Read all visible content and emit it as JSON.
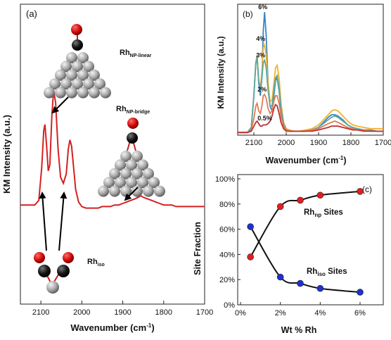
{
  "panels": {
    "a": {
      "label": "(a)",
      "ylabel": "KM Intensity (a.u.)",
      "xlabel": "Wavenumber (cm",
      "xlabel_sup": "-1",
      "xlabel_tail": ")",
      "x_ticks": [
        2100,
        2000,
        1900,
        1800,
        1700
      ],
      "annotations": {
        "linear_main": "Rh",
        "linear_sub": "NP-linear",
        "bridge_main": "Rh",
        "bridge_sub": "NP-bridge",
        "iso_main": "Rh",
        "iso_sub": "iso"
      }
    },
    "b": {
      "label": "(b)",
      "ylabel": "KM Intensity (a.u.)",
      "xlabel": "Wavenumber (cm",
      "xlabel_sup": "-1",
      "xlabel_tail": ")",
      "x_ticks": [
        2100,
        2000,
        1900,
        1800,
        1700
      ],
      "series_labels": [
        "6%",
        "4%",
        "3%",
        "2%",
        "0.5%"
      ]
    },
    "c": {
      "label": "(c)",
      "ylabel": "Site Fraction",
      "xlabel": "Wt % Rh",
      "x_ticks": [
        "0%",
        "2%",
        "4%",
        "6%"
      ],
      "y_ticks": [
        "0%",
        "20%",
        "40%",
        "60%",
        "80%",
        "100%"
      ],
      "np_main": "Rh",
      "np_sub": "np",
      "np_tail": " Sites",
      "iso_main": "Rh",
      "iso_sub": "iso",
      "iso_tail": " Sites"
    }
  },
  "chart_data": [
    {
      "panel": "a",
      "type": "line",
      "xlabel": "Wavenumber (cm-1)",
      "ylabel": "KM Intensity (a.u.)",
      "xlim": [
        2150,
        1700
      ],
      "x_reversed": true,
      "series": [
        {
          "color": "#d62020",
          "x": [
            2150,
            2115,
            2105,
            2098,
            2093,
            2090,
            2086,
            2082,
            2078,
            2073,
            2069,
            2064,
            2058,
            2052,
            2045,
            2038,
            2033,
            2029,
            2025,
            2020,
            2015,
            2008,
            2000,
            1990,
            1980,
            1970,
            1960,
            1950,
            1940,
            1930,
            1920,
            1910,
            1900,
            1890,
            1880,
            1870,
            1862,
            1856,
            1850,
            1840,
            1830,
            1820,
            1810,
            1800,
            1790,
            1780,
            1770,
            1760,
            1750,
            1740,
            1730,
            1720,
            1710,
            1700
          ],
          "y": [
            0.04,
            0.04,
            0.07,
            0.28,
            0.52,
            0.56,
            0.42,
            0.26,
            0.3,
            0.62,
            0.78,
            0.7,
            0.4,
            0.22,
            0.18,
            0.24,
            0.4,
            0.46,
            0.42,
            0.28,
            0.14,
            0.06,
            0.03,
            0.02,
            0.02,
            0.02,
            0.02,
            0.03,
            0.03,
            0.03,
            0.04,
            0.04,
            0.05,
            0.06,
            0.07,
            0.08,
            0.09,
            0.1,
            0.09,
            0.08,
            0.07,
            0.06,
            0.05,
            0.04,
            0.04,
            0.04,
            0.03,
            0.03,
            0.03,
            0.03,
            0.03,
            0.03,
            0.03,
            0.03
          ]
        }
      ]
    },
    {
      "panel": "b",
      "type": "line",
      "xlabel": "Wavenumber (cm-1)",
      "ylabel": "KM Intensity (a.u.)",
      "xlim": [
        2150,
        1700
      ],
      "x_reversed": true,
      "series": [
        {
          "name": "6%",
          "color": "#3a86c2",
          "x": [
            2150,
            2120,
            2108,
            2100,
            2094,
            2090,
            2085,
            2080,
            2075,
            2071,
            2067,
            2062,
            2056,
            2050,
            2044,
            2038,
            2033,
            2028,
            2022,
            2016,
            2008,
            2000,
            1990,
            1975,
            1960,
            1940,
            1920,
            1900,
            1885,
            1870,
            1860,
            1850,
            1840,
            1825,
            1810,
            1795,
            1780,
            1760,
            1740,
            1720,
            1700
          ],
          "y": [
            0.01,
            0.01,
            0.05,
            0.3,
            0.56,
            0.62,
            0.4,
            0.3,
            0.45,
            0.8,
            0.96,
            0.78,
            0.4,
            0.22,
            0.18,
            0.3,
            0.42,
            0.44,
            0.34,
            0.18,
            0.07,
            0.03,
            0.02,
            0.02,
            0.02,
            0.02,
            0.03,
            0.05,
            0.09,
            0.13,
            0.15,
            0.15,
            0.14,
            0.11,
            0.07,
            0.05,
            0.04,
            0.03,
            0.03,
            0.02,
            0.02
          ]
        },
        {
          "name": "4%",
          "color": "#f2b22a",
          "x": [
            2150,
            2120,
            2108,
            2100,
            2094,
            2090,
            2085,
            2080,
            2075,
            2071,
            2067,
            2062,
            2056,
            2050,
            2044,
            2038,
            2033,
            2028,
            2022,
            2016,
            2008,
            2000,
            1990,
            1975,
            1960,
            1940,
            1920,
            1900,
            1885,
            1870,
            1860,
            1850,
            1840,
            1825,
            1810,
            1795,
            1780,
            1760,
            1740,
            1720,
            1700
          ],
          "y": [
            0.01,
            0.01,
            0.05,
            0.3,
            0.56,
            0.62,
            0.42,
            0.36,
            0.5,
            0.68,
            0.7,
            0.62,
            0.4,
            0.26,
            0.26,
            0.4,
            0.52,
            0.54,
            0.44,
            0.24,
            0.09,
            0.04,
            0.03,
            0.02,
            0.02,
            0.03,
            0.04,
            0.07,
            0.11,
            0.15,
            0.18,
            0.19,
            0.18,
            0.14,
            0.1,
            0.07,
            0.06,
            0.05,
            0.04,
            0.04,
            0.04
          ]
        },
        {
          "name": "3%",
          "color": "#5ba7a3",
          "x": [
            2150,
            2120,
            2108,
            2100,
            2094,
            2090,
            2085,
            2080,
            2075,
            2071,
            2067,
            2062,
            2056,
            2050,
            2044,
            2038,
            2033,
            2028,
            2022,
            2016,
            2008,
            2000,
            1990,
            1975,
            1960,
            1940,
            1920,
            1900,
            1885,
            1870,
            1860,
            1850,
            1840,
            1825,
            1810,
            1795,
            1780,
            1760,
            1740,
            1720,
            1700
          ],
          "y": [
            0.01,
            0.01,
            0.05,
            0.3,
            0.56,
            0.6,
            0.42,
            0.34,
            0.44,
            0.56,
            0.58,
            0.52,
            0.34,
            0.22,
            0.22,
            0.34,
            0.44,
            0.46,
            0.36,
            0.2,
            0.08,
            0.03,
            0.02,
            0.02,
            0.02,
            0.02,
            0.03,
            0.05,
            0.08,
            0.11,
            0.13,
            0.14,
            0.13,
            0.1,
            0.07,
            0.05,
            0.04,
            0.03,
            0.03,
            0.02,
            0.02
          ]
        },
        {
          "name": "2%",
          "color": "#e07b54",
          "x": [
            2150,
            2120,
            2108,
            2100,
            2094,
            2090,
            2085,
            2080,
            2075,
            2071,
            2067,
            2062,
            2056,
            2050,
            2044,
            2038,
            2033,
            2028,
            2022,
            2016,
            2008,
            2000,
            1990,
            1975,
            1960,
            1940,
            1920,
            1900,
            1885,
            1870,
            1860,
            1850,
            1840,
            1825,
            1810,
            1795,
            1780,
            1760,
            1740,
            1720,
            1700
          ],
          "y": [
            0.01,
            0.01,
            0.03,
            0.12,
            0.22,
            0.24,
            0.18,
            0.16,
            0.22,
            0.3,
            0.31,
            0.28,
            0.2,
            0.16,
            0.18,
            0.26,
            0.3,
            0.3,
            0.24,
            0.14,
            0.06,
            0.03,
            0.02,
            0.02,
            0.02,
            0.02,
            0.03,
            0.04,
            0.06,
            0.08,
            0.09,
            0.1,
            0.09,
            0.07,
            0.05,
            0.04,
            0.03,
            0.03,
            0.02,
            0.02,
            0.02
          ]
        },
        {
          "name": "0.5%",
          "color": "#c03030",
          "x": [
            2150,
            2120,
            2108,
            2100,
            2094,
            2090,
            2085,
            2080,
            2075,
            2071,
            2067,
            2062,
            2056,
            2050,
            2044,
            2038,
            2033,
            2028,
            2022,
            2016,
            2008,
            2000,
            1990,
            1975,
            1960,
            1940,
            1920,
            1900,
            1885,
            1870,
            1860,
            1850,
            1840,
            1825,
            1810,
            1795,
            1780,
            1760,
            1740,
            1720,
            1700
          ],
          "y": [
            0.01,
            0.01,
            0.02,
            0.06,
            0.09,
            0.1,
            0.08,
            0.06,
            0.06,
            0.07,
            0.07,
            0.07,
            0.08,
            0.1,
            0.14,
            0.2,
            0.23,
            0.22,
            0.16,
            0.09,
            0.04,
            0.02,
            0.02,
            0.02,
            0.02,
            0.02,
            0.02,
            0.03,
            0.04,
            0.05,
            0.06,
            0.06,
            0.06,
            0.05,
            0.04,
            0.03,
            0.03,
            0.02,
            0.02,
            0.02,
            0.02
          ]
        }
      ]
    },
    {
      "panel": "c",
      "type": "scatter",
      "xlabel": "Wt % Rh",
      "ylabel": "Site Fraction",
      "xlim": [
        0,
        6.5
      ],
      "ylim": [
        0,
        100
      ],
      "series": [
        {
          "name": "Rhnp Sites",
          "color": "#e02020",
          "x": [
            0.5,
            2,
            3,
            4,
            6
          ],
          "y": [
            38,
            78,
            83,
            87,
            90
          ]
        },
        {
          "name": "Rhiso Sites",
          "color": "#2030d0",
          "x": [
            0.5,
            2,
            3,
            4,
            6
          ],
          "y": [
            62,
            22,
            17,
            13,
            10
          ]
        }
      ]
    }
  ]
}
